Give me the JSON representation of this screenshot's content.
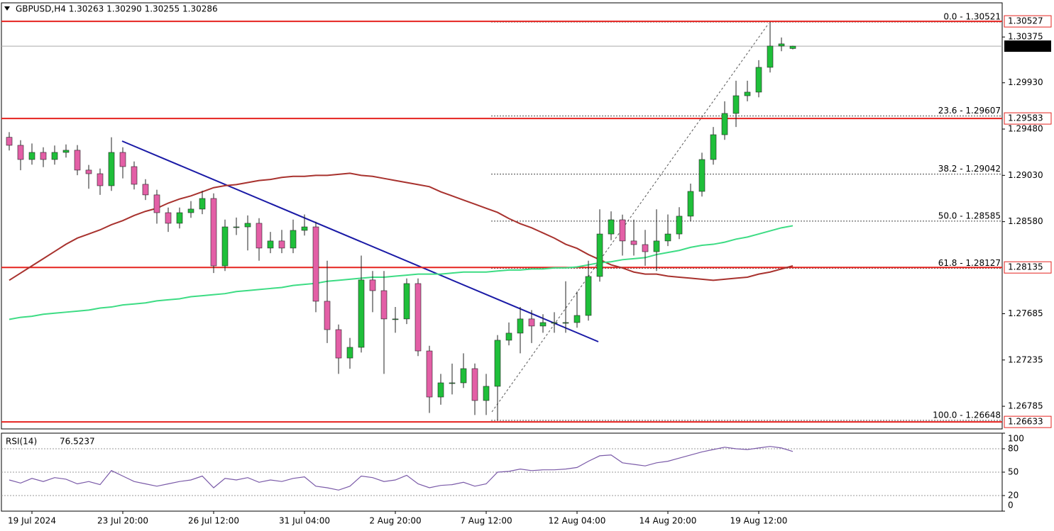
{
  "chart_data": [
    {
      "type": "candlestick",
      "title": "GBPUSD,H4  1.30263 1.30290 1.30255 1.30286",
      "categories": [
        null,
        null,
        "19 Jul 2024",
        null,
        null,
        null,
        null,
        null,
        null,
        null,
        "23 Jul 20:00",
        null,
        null,
        null,
        null,
        null,
        null,
        null,
        "26 Jul 12:00",
        null,
        null,
        null,
        null,
        null,
        null,
        null,
        "31 Jul 04:00",
        null,
        null,
        null,
        null,
        null,
        null,
        null,
        "2 Aug 20:00",
        null,
        null,
        null,
        null,
        null,
        null,
        null,
        "7 Aug 12:00",
        null,
        null,
        null,
        null,
        null,
        null,
        null,
        "12 Aug 04:00",
        null,
        null,
        null,
        null,
        null,
        null,
        null,
        "14 Aug 20:00",
        null,
        null,
        null,
        null,
        null,
        null,
        null,
        "19 Aug 12:00",
        null,
        null,
        null
      ],
      "open": [
        1.294,
        1.29322,
        1.29184,
        1.29253,
        1.29184,
        1.29253,
        1.29274,
        1.29081,
        1.29046,
        1.28929,
        1.29253,
        1.29115,
        1.28943,
        1.2884,
        1.28667,
        1.28564,
        1.28667,
        1.28702,
        1.28805,
        1.2815,
        1.28529,
        1.28529,
        1.28564,
        1.28323,
        1.28392,
        1.28323,
        1.28495,
        1.28529,
        1.27806,
        1.2753,
        1.27254,
        1.27358,
        1.28013,
        1.27909,
        1.27634,
        1.27634,
        1.27978,
        1.27323,
        1.26875,
        1.27013,
        1.27013,
        1.27151,
        1.26841,
        1.26979,
        1.27427,
        1.27496,
        1.27634,
        1.27565,
        1.27599,
        1.27599,
        1.27599,
        1.27668,
        1.28047,
        1.2846,
        1.28598,
        1.28392,
        1.28357,
        1.28288,
        1.28392,
        1.2846,
        1.28633,
        1.28874,
        1.29184,
        1.29425,
        1.29632,
        1.29804,
        1.29839,
        1.3008,
        1.30287,
        1.30263
      ],
      "high": [
        1.2945,
        1.29372,
        1.2934,
        1.29303,
        1.2932,
        1.2933,
        1.29324,
        1.29131,
        1.29096,
        1.294,
        1.29303,
        1.29165,
        1.28993,
        1.2889,
        1.28717,
        1.28717,
        1.2878,
        1.2888,
        1.28855,
        1.286,
        1.2862,
        1.2864,
        1.28614,
        1.2848,
        1.285,
        1.286,
        1.2865,
        1.28579,
        1.282,
        1.2758,
        1.2745,
        1.2825,
        1.281,
        1.281,
        1.2775,
        1.28028,
        1.28028,
        1.27373,
        1.271,
        1.272,
        1.273,
        1.27201,
        1.271,
        1.27477,
        1.276,
        1.2775,
        1.2772,
        1.2768,
        1.277,
        1.28,
        1.279,
        1.282,
        1.287,
        1.2868,
        1.28648,
        1.286,
        1.285,
        1.287,
        1.2865,
        1.2872,
        1.2895,
        1.2925,
        1.295,
        1.2975,
        1.2995,
        1.2995,
        1.3015,
        1.30521,
        1.3037,
        1.3029
      ],
      "low": [
        1.29272,
        1.2908,
        1.29134,
        1.2911,
        1.29134,
        1.29203,
        1.29031,
        1.289,
        1.2884,
        1.28879,
        1.29,
        1.28893,
        1.2879,
        1.2856,
        1.2848,
        1.28514,
        1.28617,
        1.28652,
        1.2808,
        1.281,
        1.2845,
        1.283,
        1.282,
        1.28273,
        1.28273,
        1.28273,
        1.28445,
        1.277,
        1.274,
        1.271,
        1.2715,
        1.27308,
        1.277,
        1.271,
        1.275,
        1.27584,
        1.27273,
        1.2672,
        1.268,
        1.269,
        1.26963,
        1.267,
        1.267,
        1.26648,
        1.27377,
        1.273,
        1.274,
        1.275,
        1.275,
        1.275,
        1.27549,
        1.27618,
        1.27997,
        1.284,
        1.2825,
        1.2825,
        1.2815,
        1.281,
        1.28342,
        1.2841,
        1.28583,
        1.28824,
        1.29134,
        1.29375,
        1.295,
        1.2975,
        1.29789,
        1.3003,
        1.30237,
        1.30255
      ],
      "close": [
        1.29322,
        1.29184,
        1.29253,
        1.29184,
        1.29253,
        1.29274,
        1.29081,
        1.29046,
        1.28929,
        1.29253,
        1.29115,
        1.28943,
        1.2884,
        1.28667,
        1.28564,
        1.28667,
        1.28702,
        1.28805,
        1.2815,
        1.28529,
        1.28529,
        1.28564,
        1.28323,
        1.28392,
        1.28323,
        1.28495,
        1.28529,
        1.27806,
        1.2753,
        1.27254,
        1.27358,
        1.28013,
        1.27909,
        1.27634,
        1.27634,
        1.27978,
        1.27323,
        1.26875,
        1.27013,
        1.27013,
        1.27151,
        1.26841,
        1.26979,
        1.27427,
        1.27496,
        1.27634,
        1.27565,
        1.27599,
        1.27599,
        1.27599,
        1.27668,
        1.28047,
        1.2846,
        1.28598,
        1.28392,
        1.28357,
        1.28288,
        1.28392,
        1.2846,
        1.28633,
        1.28874,
        1.29184,
        1.29425,
        1.29632,
        1.29804,
        1.29839,
        1.3008,
        1.30287,
        1.30308,
        1.30286
      ],
      "up_color": "#1fbf3a",
      "down_color": "#e35fa6",
      "series": [
        {
          "color": "#a8322e",
          "values": [
            1.2801,
            1.2808,
            1.2815,
            1.2822,
            1.2829,
            1.2836,
            1.2842,
            1.2846,
            1.285,
            1.2855,
            1.2859,
            1.2864,
            1.2868,
            1.2871,
            1.2876,
            1.288,
            1.2883,
            1.2887,
            1.2891,
            1.2893,
            1.2894,
            1.2896,
            1.2898,
            1.2899,
            1.2901,
            1.2902,
            1.2902,
            1.2903,
            1.2903,
            1.2904,
            1.2905,
            1.2903,
            1.2902,
            1.29,
            1.2898,
            1.2896,
            1.2894,
            1.2892,
            1.2887,
            1.2883,
            1.2879,
            1.2875,
            1.2871,
            1.2867,
            1.2861,
            1.2856,
            1.2852,
            1.2847,
            1.2842,
            1.2836,
            1.2832,
            1.2826,
            1.2821,
            1.2816,
            1.2813,
            1.2809,
            1.2807,
            1.2807,
            1.2805,
            1.2804,
            1.2803,
            1.2802,
            1.2801,
            1.2802,
            1.2803,
            1.2804,
            1.2807,
            1.2809,
            1.2812,
            1.2815
          ]
        },
        {
          "color": "#3ddc84",
          "values": [
            1.2763,
            1.2765,
            1.2766,
            1.2768,
            1.2769,
            1.277,
            1.2771,
            1.2772,
            1.2774,
            1.2775,
            1.2777,
            1.2778,
            1.2779,
            1.2781,
            1.2782,
            1.2783,
            1.2785,
            1.2786,
            1.2787,
            1.2788,
            1.279,
            1.2791,
            1.2792,
            1.2793,
            1.2794,
            1.2796,
            1.2797,
            1.2798,
            1.28,
            1.2801,
            1.2802,
            1.2803,
            1.2804,
            1.2804,
            1.2805,
            1.2806,
            1.2807,
            1.2807,
            1.2807,
            1.2808,
            1.2809,
            1.2809,
            1.2809,
            1.281,
            1.2811,
            1.2811,
            1.2812,
            1.2812,
            1.2813,
            1.2813,
            1.2814,
            1.2816,
            1.2818,
            1.2819,
            1.2821,
            1.2822,
            1.2823,
            1.2826,
            1.2828,
            1.283,
            1.2833,
            1.2835,
            1.2836,
            1.2838,
            1.2841,
            1.2843,
            1.2846,
            1.2849,
            1.2852,
            1.2854
          ]
        }
      ],
      "ylim": [
        1.26565,
        1.30707
      ],
      "yticks": [
        1.30375,
        {
          "value": 1.2993,
          "label": "1.29930"
        },
        {
          "value": 1.2948,
          "label": "1.29480"
        },
        {
          "value": 1.2903,
          "label": "1.29030"
        },
        {
          "value": 1.2858,
          "label": "1.28580"
        },
        1.27685,
        1.27235,
        1.26785
      ],
      "levels": [
        1.30527,
        1.29583,
        1.28135,
        1.26633
      ],
      "level_color": "#e5231f",
      "current_price": 1.30286,
      "fib": [
        {
          "value": 1.30521,
          "label": "0.0 - 1.30521"
        },
        {
          "value": 1.29607,
          "label": "23.6 - 1.29607"
        },
        {
          "value": 1.29042,
          "label": "38.2 - 1.29042"
        },
        {
          "value": 1.28585,
          "label": "50.0 - 1.28585"
        },
        {
          "value": 1.28127,
          "label": "61.8 - 1.28127"
        },
        {
          "value": 1.26648,
          "label": "100.0 - 1.26648"
        }
      ],
      "fib_color": "#23237a"
    },
    {
      "type": "line",
      "title": "RSI(14)",
      "color": "#7a5aa8",
      "values": [
        40,
        36,
        42,
        38,
        43,
        41,
        35,
        38,
        34,
        52,
        45,
        38,
        35,
        32,
        35,
        38,
        40,
        45,
        30,
        42,
        40,
        43,
        37,
        40,
        38,
        42,
        44,
        32,
        30,
        27,
        32,
        45,
        43,
        38,
        40,
        46,
        35,
        30,
        33,
        34,
        37,
        32,
        35,
        50,
        51,
        54,
        52,
        53,
        53,
        54,
        56,
        64,
        71,
        72,
        62,
        60,
        58,
        62,
        64,
        68,
        72,
        76,
        79,
        82,
        80,
        79,
        81,
        83,
        81,
        76.5237
      ],
      "ylim": [
        0,
        100
      ],
      "yticks": [
        100,
        80,
        50,
        20,
        0
      ],
      "levels": [
        80,
        50,
        20
      ]
    }
  ]
}
